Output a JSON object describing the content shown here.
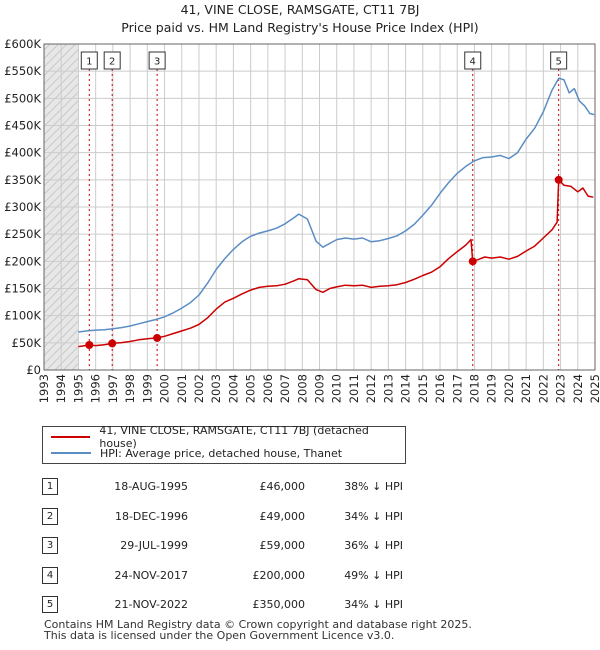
{
  "title": "41, VINE CLOSE, RAMSGATE, CT11 7BJ",
  "subtitle": "Price paid vs. HM Land Registry's House Price Index (HPI)",
  "colors": {
    "property": "#cc0000",
    "hpi": "#5b8dc5",
    "shade": "#e7e7e7",
    "grid": "#cccccc",
    "marker_line": "#cc0000"
  },
  "legend": {
    "property_label": "41, VINE CLOSE, RAMSGATE, CT11 7BJ (detached house)",
    "hpi_label": "HPI: Average price, detached house, Thanet"
  },
  "sales": [
    {
      "num": "1",
      "date": "18-AUG-1995",
      "price": "£46,000",
      "hpi_diff": "38% ↓ HPI"
    },
    {
      "num": "2",
      "date": "18-DEC-1996",
      "price": "£49,000",
      "hpi_diff": "34% ↓ HPI"
    },
    {
      "num": "3",
      "date": "29-JUL-1999",
      "price": "£59,000",
      "hpi_diff": "36% ↓ HPI"
    },
    {
      "num": "4",
      "date": "24-NOV-2017",
      "price": "£200,000",
      "hpi_diff": "49% ↓ HPI"
    },
    {
      "num": "5",
      "date": "21-NOV-2022",
      "price": "£350,000",
      "hpi_diff": "34% ↓ HPI"
    }
  ],
  "footer": {
    "line1": "Contains HM Land Registry data © Crown copyright and database right 2025.",
    "line2": "This data is licensed under the Open Government Licence v3.0."
  },
  "chart_data": {
    "type": "line",
    "title": "41, VINE CLOSE, RAMSGATE, CT11 7BJ",
    "subtitle": "Price paid vs. HM Land Registry's House Price Index (HPI)",
    "xlabel": "",
    "ylabel": "",
    "xlim": [
      1993,
      2025
    ],
    "ylim": [
      0,
      600000
    ],
    "grid": true,
    "legend_position": "bottom-left",
    "shaded_before": 1995,
    "x_ticks": [
      "1993",
      "1994",
      "1995",
      "1996",
      "1997",
      "1998",
      "1999",
      "2000",
      "2001",
      "2002",
      "2003",
      "2004",
      "2005",
      "2006",
      "2007",
      "2008",
      "2009",
      "2010",
      "2011",
      "2012",
      "2013",
      "2014",
      "2015",
      "2016",
      "2017",
      "2018",
      "2019",
      "2020",
      "2021",
      "2022",
      "2023",
      "2024",
      "2025"
    ],
    "y_ticks": [
      {
        "value": 0,
        "label": "£0"
      },
      {
        "value": 50000,
        "label": "£50K"
      },
      {
        "value": 100000,
        "label": "£100K"
      },
      {
        "value": 150000,
        "label": "£150K"
      },
      {
        "value": 200000,
        "label": "£200K"
      },
      {
        "value": 250000,
        "label": "£250K"
      },
      {
        "value": 300000,
        "label": "£300K"
      },
      {
        "value": 350000,
        "label": "£350K"
      },
      {
        "value": 400000,
        "label": "£400K"
      },
      {
        "value": 450000,
        "label": "£450K"
      },
      {
        "value": 500000,
        "label": "£500K"
      },
      {
        "value": 550000,
        "label": "£550K"
      },
      {
        "value": 600000,
        "label": "£600K"
      }
    ],
    "sale_markers": [
      {
        "label": "1",
        "x": 1995.63,
        "y": 46000
      },
      {
        "label": "2",
        "x": 1996.96,
        "y": 49000
      },
      {
        "label": "3",
        "x": 1999.57,
        "y": 59000
      },
      {
        "label": "4",
        "x": 2017.9,
        "y": 200000
      },
      {
        "label": "5",
        "x": 2022.89,
        "y": 350000
      }
    ],
    "series": [
      {
        "name": "41, VINE CLOSE, RAMSGATE, CT11 7BJ (detached house)",
        "color": "#cc0000",
        "x": [
          1995.0,
          1995.63,
          1996.0,
          1996.5,
          1996.96,
          1997.5,
          1998.0,
          1998.5,
          1999.0,
          1999.57,
          2000.0,
          2000.5,
          2001.0,
          2001.5,
          2002.0,
          2002.5,
          2003.0,
          2003.5,
          2004.0,
          2004.5,
          2005.0,
          2005.5,
          2006.0,
          2006.5,
          2007.0,
          2007.5,
          2007.8,
          2008.3,
          2008.8,
          2009.2,
          2009.6,
          2010.0,
          2010.5,
          2011.0,
          2011.5,
          2012.0,
          2012.5,
          2013.0,
          2013.5,
          2014.0,
          2014.5,
          2015.0,
          2015.5,
          2016.0,
          2016.5,
          2017.0,
          2017.5,
          2017.8,
          2017.9,
          2018.2,
          2018.6,
          2019.0,
          2019.5,
          2020.0,
          2020.5,
          2021.0,
          2021.5,
          2022.0,
          2022.5,
          2022.8,
          2022.89,
          2023.2,
          2023.6,
          2024.0,
          2024.3,
          2024.6,
          2024.9
        ],
        "y": [
          43000,
          46000,
          45000,
          46500,
          49000,
          50500,
          52500,
          55500,
          57500,
          59000,
          62000,
          67000,
          72000,
          77000,
          84000,
          96000,
          112000,
          125000,
          132000,
          140000,
          147000,
          152000,
          154000,
          155000,
          158000,
          164000,
          168000,
          166000,
          148000,
          143000,
          150000,
          153000,
          156000,
          155000,
          156000,
          152000,
          154000,
          155000,
          157000,
          161000,
          167000,
          174000,
          180000,
          190000,
          205000,
          218000,
          230000,
          240000,
          200000,
          203000,
          208000,
          206000,
          208000,
          204000,
          209000,
          219000,
          228000,
          243000,
          258000,
          272000,
          350000,
          340000,
          338000,
          328000,
          335000,
          320000,
          318000
        ]
      },
      {
        "name": "HPI: Average price, detached house, Thanet",
        "color": "#5b8dc5",
        "x": [
          1995.0,
          1995.5,
          1996.0,
          1996.5,
          1997.0,
          1997.5,
          1998.0,
          1998.5,
          1999.0,
          1999.5,
          2000.0,
          2000.5,
          2001.0,
          2001.5,
          2002.0,
          2002.5,
          2003.0,
          2003.5,
          2004.0,
          2004.5,
          2005.0,
          2005.5,
          2006.0,
          2006.5,
          2007.0,
          2007.5,
          2007.8,
          2008.3,
          2008.8,
          2009.2,
          2009.6,
          2010.0,
          2010.5,
          2011.0,
          2011.5,
          2012.0,
          2012.5,
          2013.0,
          2013.5,
          2014.0,
          2014.5,
          2015.0,
          2015.5,
          2016.0,
          2016.5,
          2017.0,
          2017.5,
          2018.0,
          2018.5,
          2019.0,
          2019.5,
          2020.0,
          2020.5,
          2021.0,
          2021.5,
          2022.0,
          2022.5,
          2022.9,
          2023.2,
          2023.5,
          2023.8,
          2024.1,
          2024.4,
          2024.7,
          2024.95
        ],
        "y": [
          70000,
          72000,
          73500,
          74000,
          76000,
          78000,
          81000,
          85000,
          89000,
          93000,
          98000,
          105000,
          114000,
          124000,
          138000,
          160000,
          185000,
          205000,
          222000,
          236000,
          246000,
          252000,
          256000,
          261000,
          269000,
          280000,
          287000,
          278000,
          237000,
          226000,
          233000,
          240000,
          243000,
          241000,
          243000,
          236000,
          238000,
          242000,
          247000,
          256000,
          268000,
          285000,
          303000,
          325000,
          345000,
          362000,
          375000,
          385000,
          391000,
          392000,
          395000,
          389000,
          400000,
          425000,
          445000,
          475000,
          515000,
          537000,
          534000,
          510000,
          518000,
          495000,
          486000,
          472000,
          470000
        ]
      }
    ]
  }
}
